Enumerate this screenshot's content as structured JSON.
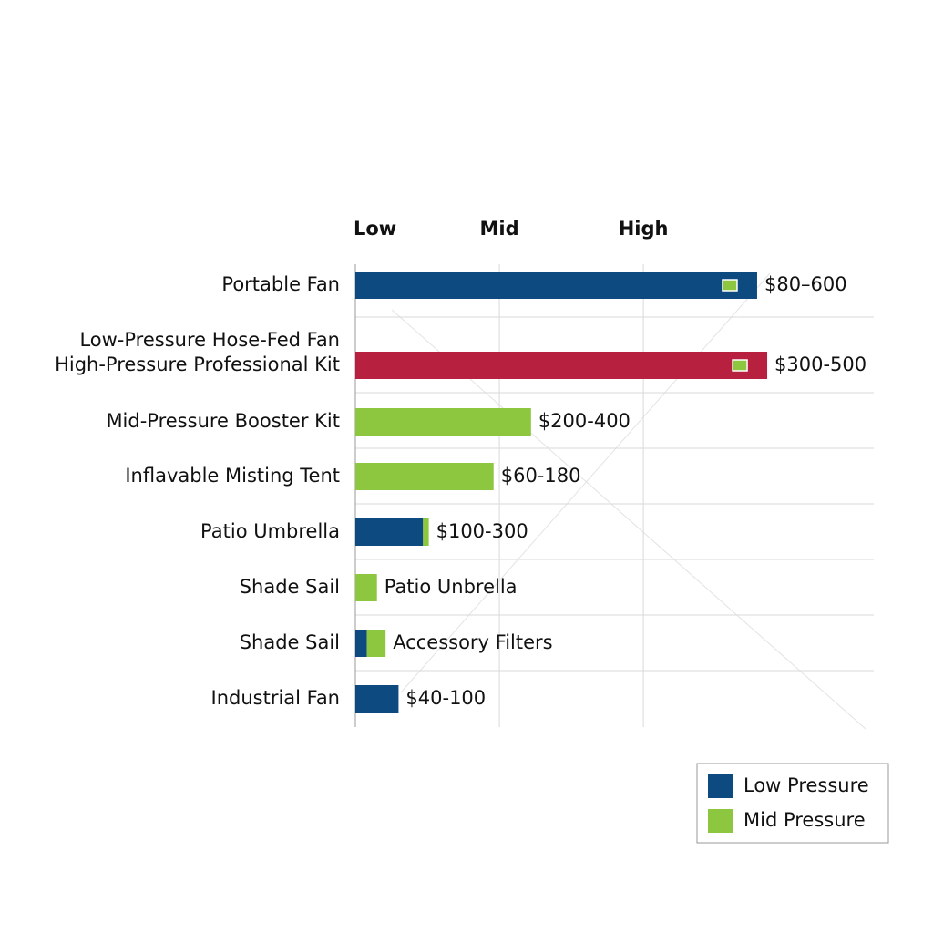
{
  "chart_data": {
    "type": "stacked-bar-horizontal",
    "categories": [
      "Portable Fan",
      [
        "Low-Pressure Hose-Fed Fan",
        "High-Pressure Professional Kit"
      ],
      "Mid-Pressure Booster Kit",
      "Inflavable Misting Tent",
      "Patio Umbrella",
      "Shade Sail",
      "Shade Sail",
      "Industrial Fan"
    ],
    "bar_labels": [
      "$80–600",
      "$300-500",
      "$200-400",
      "$60-180",
      "$100-300",
      "Patio Unbrella",
      "Accessory Filters",
      "$40-100"
    ],
    "series": [
      {
        "name": "Low Pressure",
        "color": "#0d4a80",
        "values": [
          2.79,
          null,
          null,
          null,
          0.47,
          null,
          0.08,
          0.3
        ]
      },
      {
        "name": "Mid Pressure",
        "color": "#8dc63f",
        "values": [
          null,
          null,
          1.22,
          0.96,
          0.04,
          0.15,
          0.13,
          null
        ]
      },
      {
        "color": "#b8203f",
        "values": [
          null,
          2.86,
          null,
          null,
          null,
          null,
          null,
          null
        ]
      }
    ],
    "xlim": [
      0,
      3.6
    ],
    "xticks": [
      {
        "value": 0,
        "label": "Low"
      },
      {
        "value": 1,
        "label": "Mid"
      },
      {
        "value": 2,
        "label": "High"
      }
    ],
    "grid": true
  }
}
